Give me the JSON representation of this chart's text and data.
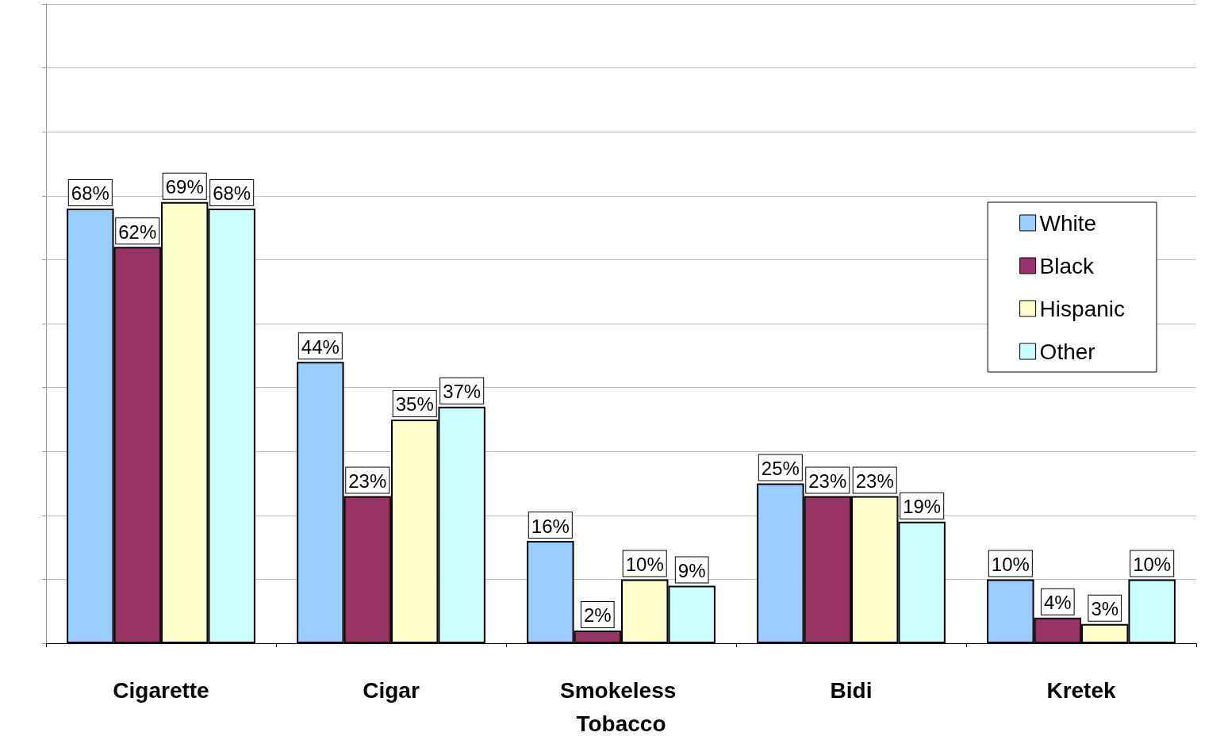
{
  "chart_data": {
    "type": "bar",
    "categories": [
      "Cigarette",
      "Cigar",
      "Smokeless Tobacco",
      "Bidi",
      "Kretek"
    ],
    "series": [
      {
        "name": "White",
        "color": "#99ccff",
        "values": [
          68,
          44,
          16,
          25,
          10
        ],
        "value_labels": [
          "68%",
          "44%",
          "16%",
          "25%",
          "10%"
        ]
      },
      {
        "name": "Black",
        "color": "#993366",
        "values": [
          62,
          23,
          2,
          23,
          4
        ],
        "value_labels": [
          "62%",
          "23%",
          "2%",
          "23%",
          "4%"
        ]
      },
      {
        "name": "Hispanic",
        "color": "#ffffcc",
        "values": [
          69,
          35,
          10,
          23,
          3
        ],
        "value_labels": [
          "69%",
          "35%",
          "10%",
          "23%",
          "3%"
        ]
      },
      {
        "name": "Other",
        "color": "#ccffff",
        "values": [
          68,
          37,
          9,
          19,
          10
        ],
        "value_labels": [
          "68%",
          "37%",
          "9%",
          "19%",
          "10%"
        ]
      }
    ],
    "ylim": [
      0,
      100
    ],
    "yticks": [
      {
        "value": 0,
        "label": null
      },
      {
        "value": 10,
        "label": null
      },
      {
        "value": 20,
        "label": null
      },
      {
        "value": 30,
        "label": null
      },
      {
        "value": 40,
        "label": null
      },
      {
        "value": 50,
        "label": null
      },
      {
        "value": 60,
        "label": null
      },
      {
        "value": 70,
        "label": null
      },
      {
        "value": 80,
        "label": null
      },
      {
        "value": 90,
        "label": null
      },
      {
        "value": 100,
        "label": null
      }
    ],
    "tick_labels": "x",
    "grid": "y",
    "legend": "top right"
  }
}
